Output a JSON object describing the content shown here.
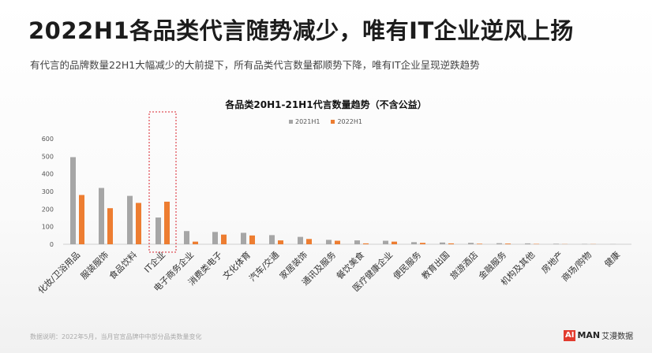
{
  "header": {
    "title": "2022H1各品类代言随势减少，唯有IT企业逆风上扬",
    "subtitle": "有代言的品牌数量22H1大幅减少的大前提下，所有品类代言数量都顺势下降，唯有IT企业呈现逆跌趋势"
  },
  "colors": {
    "series_2021": "#a6a6a6",
    "series_2022": "#ed7d31",
    "highlight": "#d9232d"
  },
  "chart_data": {
    "type": "bar",
    "title": "各品类20H1-21H1代言数量趋势（不含公益）",
    "categories": [
      "化妆/卫浴用品",
      "服装服饰",
      "食品饮料",
      "IT企业",
      "电子商务企业",
      "消费类电子",
      "文化体育",
      "汽车/交通",
      "家居装饰",
      "通讯及服务",
      "餐饮美食",
      "医疗健康企业",
      "便民服务",
      "教育出国",
      "旅游酒店",
      "金融服务",
      "机构及其他",
      "房地产",
      "商场/购物",
      "健康"
    ],
    "series": [
      {
        "name": "2021H1",
        "values": [
          495,
          320,
          275,
          152,
          75,
          70,
          65,
          52,
          42,
          25,
          22,
          20,
          12,
          10,
          8,
          6,
          5,
          3,
          2,
          1
        ]
      },
      {
        "name": "2022H1",
        "values": [
          280,
          205,
          235,
          242,
          15,
          55,
          50,
          22,
          30,
          20,
          5,
          15,
          8,
          5,
          3,
          4,
          2,
          1,
          1,
          0
        ]
      }
    ],
    "yticks": [
      "0",
      "100",
      "200",
      "300",
      "400",
      "500",
      "600"
    ],
    "ylim": [
      0,
      600
    ],
    "legend_position": "top-center",
    "highlight_category": "IT企业"
  },
  "footer": {
    "note": "数据说明：2022年5月，当月官宣品牌中中部分品类数量变化",
    "logo_ai": "AI",
    "logo_man": "MAN",
    "logo_cn": "艾漫数据"
  }
}
